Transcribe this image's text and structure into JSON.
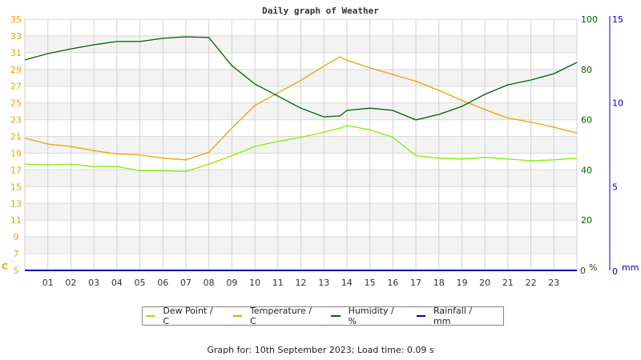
{
  "chart_data": {
    "type": "line",
    "title": "Daily graph of Weather",
    "xlabel": "",
    "x_ticks": [
      "01",
      "02",
      "03",
      "04",
      "05",
      "06",
      "07",
      "08",
      "09",
      "10",
      "11",
      "12",
      "13",
      "14",
      "15",
      "16",
      "17",
      "18",
      "19",
      "20",
      "21",
      "22",
      "23"
    ],
    "x_hours": [
      0,
      1,
      2,
      3,
      4,
      5,
      6,
      7,
      8,
      9,
      10,
      11,
      12,
      13,
      13.7,
      14,
      15,
      16,
      17,
      18,
      19,
      20,
      21,
      22,
      23,
      24
    ],
    "axes": {
      "left": {
        "label": "C",
        "range": [
          5,
          35
        ],
        "ticks": [
          5,
          7,
          9,
          11,
          13,
          15,
          17,
          19,
          21,
          23,
          25,
          27,
          29,
          31,
          33,
          35
        ],
        "color": "#f0a000"
      },
      "right1": {
        "label": "%",
        "range": [
          0,
          100
        ],
        "ticks": [
          0,
          20,
          40,
          60,
          80,
          100
        ],
        "color": "#006000"
      },
      "right2": {
        "label": "mm",
        "range": [
          0,
          15
        ],
        "ticks": [
          0,
          5,
          10,
          15
        ],
        "color": "#0000c0"
      }
    },
    "grid": true,
    "legend_position": "bottom",
    "series": [
      {
        "name": "Dew Point / C",
        "axis": "left",
        "color": "#80f000",
        "values": [
          17.7,
          17.6,
          17.7,
          17.4,
          17.4,
          16.9,
          16.9,
          16.8,
          17.7,
          18.7,
          19.8,
          20.4,
          20.9,
          21.5,
          22.0,
          22.3,
          21.8,
          20.9,
          18.7,
          18.4,
          18.3,
          18.5,
          18.3,
          18.1,
          18.2,
          18.4
        ]
      },
      {
        "name": "Temperature / C",
        "axis": "left",
        "color": "#f0a000",
        "values": [
          20.8,
          20.1,
          19.8,
          19.3,
          18.9,
          18.8,
          18.4,
          18.2,
          19.1,
          22.0,
          24.7,
          26.2,
          27.7,
          29.4,
          30.5,
          30.1,
          29.2,
          28.4,
          27.6,
          26.5,
          25.3,
          24.2,
          23.2,
          22.7,
          22.1,
          21.4
        ]
      },
      {
        "name": "Humidity / %",
        "axis": "right1",
        "color": "#006000",
        "values": [
          83.8,
          86.3,
          88.2,
          89.8,
          91.1,
          91.1,
          92.4,
          93.0,
          92.7,
          81.5,
          74.2,
          69.4,
          64.6,
          61.1,
          61.5,
          63.7,
          64.6,
          63.7,
          59.9,
          62.1,
          65.3,
          70.1,
          73.9,
          75.8,
          78.3,
          82.8
        ]
      },
      {
        "name": "Rainfall / mm",
        "axis": "right2",
        "color": "#0000c0",
        "values": [
          0,
          0,
          0,
          0,
          0,
          0,
          0,
          0,
          0,
          0,
          0,
          0,
          0,
          0,
          0,
          0,
          0,
          0,
          0,
          0,
          0,
          0,
          0,
          0,
          0,
          0
        ]
      }
    ]
  },
  "legend": {
    "items": [
      {
        "label": "Dew Point / C",
        "color": "#80f000"
      },
      {
        "label": "Temperature / C",
        "color": "#f0a000"
      },
      {
        "label": "Humidity / %",
        "color": "#006000"
      },
      {
        "label": "Rainfall / mm",
        "color": "#0000c0"
      }
    ]
  },
  "footer": {
    "text": "Graph for: 10th September 2023; Load time: 0.09 s"
  }
}
